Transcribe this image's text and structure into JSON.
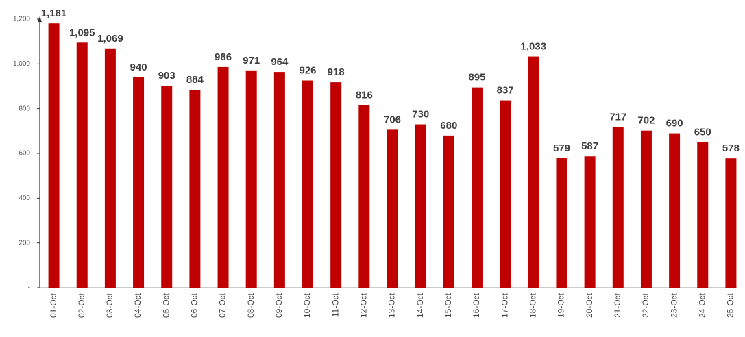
{
  "chart_data": {
    "type": "bar",
    "categories": [
      "01-Oct",
      "02-Oct",
      "03-Oct",
      "04-Oct",
      "05-Oct",
      "06-Oct",
      "07-Oct",
      "08-Oct",
      "09-Oct",
      "10-Oct",
      "11-Oct",
      "12-Oct",
      "13-Oct",
      "14-Oct",
      "15-Oct",
      "16-Oct",
      "17-Oct",
      "18-Oct",
      "19-Oct",
      "20-Oct",
      "21-Oct",
      "22-Oct",
      "23-Oct",
      "24-Oct",
      "25-Oct"
    ],
    "values": [
      1181,
      1095,
      1069,
      940,
      903,
      884,
      986,
      971,
      964,
      926,
      918,
      816,
      706,
      730,
      680,
      895,
      837,
      1033,
      579,
      587,
      717,
      702,
      690,
      650,
      578
    ],
    "value_labels": [
      "1,181",
      "1,095",
      "1,069",
      "940",
      "903",
      "884",
      "986",
      "971",
      "964",
      "926",
      "918",
      "816",
      "706",
      "730",
      "680",
      "895",
      "837",
      "1,033",
      "579",
      "587",
      "717",
      "702",
      "690",
      "650",
      "578"
    ],
    "color": "#c00000",
    "ylim": [
      0,
      1200
    ],
    "yticks": [
      {
        "value": 0,
        "label": "-"
      },
      200,
      400,
      600,
      800,
      {
        "value": 1000,
        "label": "1,000"
      },
      {
        "value": 1200,
        "label": "1,200"
      }
    ],
    "grid": false
  }
}
